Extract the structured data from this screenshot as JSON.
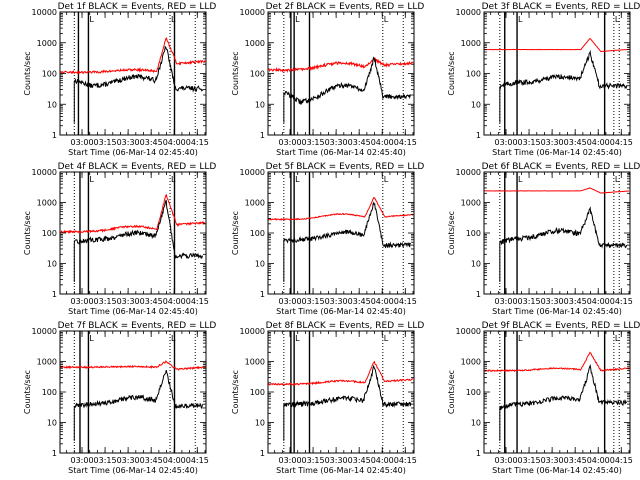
{
  "chart_data": {
    "type": "line",
    "layout": "3x3 grid",
    "shared": {
      "xlabel": "Start Time (06-Mar-14 02:45:40)",
      "ylabel": "Counts/sec",
      "y_scale": "log",
      "ylim": [
        1,
        10000
      ],
      "yticks": [
        1,
        10,
        100,
        1000,
        10000
      ],
      "yticks_label": [
        "1",
        "10",
        "100",
        "1000",
        "10000"
      ],
      "xlim_min_after_start": [
        0,
        95
      ],
      "xticks_min_after_start": [
        14.33,
        29.33,
        44.33,
        59.33,
        74.33,
        89.33
      ],
      "xticks_label": [
        "03:00",
        "03:15",
        "03:30",
        "03:45",
        "04:00",
        "04:15"
      ],
      "series_colors": {
        "events": "#000000",
        "lld": "#ff0000"
      },
      "marker_text": "L"
    },
    "panels": [
      {
        "title": "Det 1f BLACK = Events, RED = LLD",
        "events": {
          "start": 60,
          "base": 40,
          "hump": 2.0,
          "peak": 800,
          "end": 33,
          "start_x": 9.3
        },
        "lld": {
          "base": 110,
          "hump": 1.2,
          "peak": 1500,
          "end": 250,
          "noise": 0.08
        },
        "vlines_solid": [
          12,
          18.5,
          74.5
        ],
        "vlines_dotted": [
          9.3,
          71.6,
          88
        ]
      },
      {
        "title": "Det 2f BLACK = Events, RED = LLD",
        "events": {
          "start": 25,
          "base": 12,
          "hump": 3.5,
          "peak": 350,
          "end": 18,
          "start_x": 10.3
        },
        "lld": {
          "base": 130,
          "hump": 1.7,
          "peak": 300,
          "end": 220,
          "noise": 0.1
        },
        "vlines_solid": [
          14.9,
          17,
          27
        ],
        "vlines_dotted": [
          10.3,
          74.7,
          88
        ]
      },
      {
        "title": "Det 3f BLACK = Events, RED = LLD",
        "events": {
          "start": 40,
          "base": 50,
          "hump": 1.6,
          "peak": 470,
          "end": 40,
          "start_x": 10.3
        },
        "lld": {
          "base": 600,
          "hump": 1.0,
          "peak": 1400,
          "end": 610,
          "noise": 0.01
        },
        "vlines_solid": [
          13.5,
          21.5,
          78.5
        ],
        "vlines_dotted": [
          10.3,
          84.5,
          88
        ]
      },
      {
        "title": "Det 4f BLACK = Events, RED = LLD",
        "events": {
          "start": 50,
          "base": 60,
          "hump": 1.7,
          "peak": 1100,
          "end": 18,
          "start_x": 9.3
        },
        "lld": {
          "base": 110,
          "hump": 1.5,
          "peak": 1800,
          "end": 220,
          "noise": 0.07
        },
        "vlines_solid": [
          13,
          18.5,
          74.5
        ],
        "vlines_dotted": [
          9.3,
          71.6,
          88
        ]
      },
      {
        "title": "Det 5f BLACK = Events, RED = LLD",
        "events": {
          "start": 60,
          "base": 60,
          "hump": 1.8,
          "peak": 1000,
          "end": 40,
          "start_x": 10.3
        },
        "lld": {
          "base": 280,
          "hump": 1.5,
          "peak": 1500,
          "end": 400,
          "noise": 0.04
        },
        "vlines_solid": [
          14.9,
          17,
          27
        ],
        "vlines_dotted": [
          10.3,
          74.7,
          88
        ]
      },
      {
        "title": "Det 6f BLACK = Events, RED = LLD",
        "events": {
          "start": 50,
          "base": 65,
          "hump": 1.9,
          "peak": 600,
          "end": 40,
          "start_x": 10.3
        },
        "lld": {
          "base": 2400,
          "hump": 1.0,
          "peak": 3000,
          "end": 2400,
          "noise": 0.01
        },
        "vlines_solid": [
          13.5,
          21.5,
          78.5
        ],
        "vlines_dotted": [
          10.3,
          84.5,
          88
        ]
      },
      {
        "title": "Det 7f BLACK = Events, RED = LLD",
        "events": {
          "start": 35,
          "base": 40,
          "hump": 1.7,
          "peak": 500,
          "end": 35,
          "start_x": 9.3
        },
        "lld": {
          "base": 650,
          "hump": 1.05,
          "peak": 1000,
          "end": 650,
          "noise": 0.06
        },
        "vlines_solid": [
          13,
          18.5,
          74.5
        ],
        "vlines_dotted": [
          9.3,
          71.6,
          88
        ]
      },
      {
        "title": "Det 8f BLACK = Events, RED = LLD",
        "events": {
          "start": 40,
          "base": 40,
          "hump": 1.6,
          "peak": 700,
          "end": 40,
          "start_x": 10.3
        },
        "lld": {
          "base": 180,
          "hump": 1.3,
          "peak": 1000,
          "end": 260,
          "noise": 0.06
        },
        "vlines_solid": [
          14.9,
          17,
          27
        ],
        "vlines_dotted": [
          10.3,
          74.7,
          88
        ]
      },
      {
        "title": "Det 9f BLACK = Events, RED = LLD",
        "events": {
          "start": 30,
          "base": 40,
          "hump": 1.6,
          "peak": 650,
          "end": 45,
          "start_x": 10.3
        },
        "lld": {
          "base": 500,
          "hump": 1.2,
          "peak": 2000,
          "end": 600,
          "noise": 0.05
        },
        "vlines_solid": [
          13.5,
          21.5,
          78.5
        ],
        "vlines_dotted": [
          10.3,
          84.5,
          88
        ]
      }
    ]
  }
}
